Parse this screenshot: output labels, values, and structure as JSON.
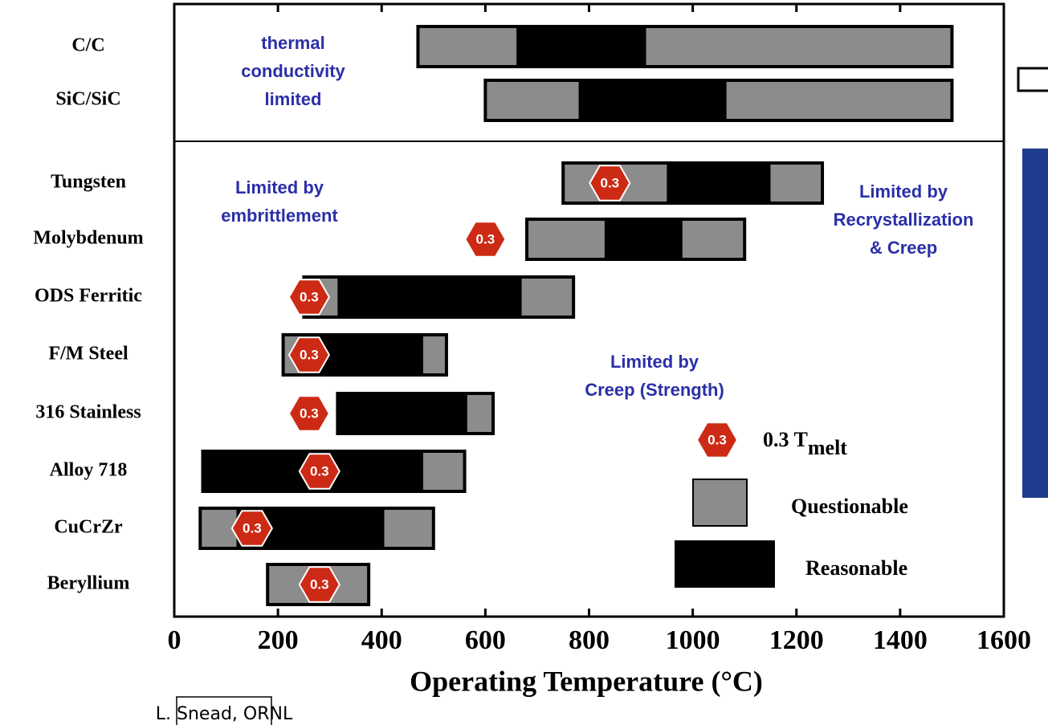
{
  "chart_data": {
    "type": "range-bar",
    "xlabel": "Operating Temperature (°C)",
    "categories": [
      "C/C",
      "SiC/SiC",
      "Tungsten",
      "Molybdenum",
      "ODS Ferritic",
      "F/M Steel",
      "316 Stainless",
      "Alloy 718",
      "CuCrZr",
      "Beryllium"
    ],
    "series": [
      {
        "name": "Questionable",
        "color": "#8c8c8c",
        "values": [
          [
            470,
            1500
          ],
          [
            600,
            1500
          ],
          [
            750,
            1250
          ],
          [
            680,
            1100
          ],
          [
            250,
            770
          ],
          [
            210,
            525
          ],
          [
            315,
            615
          ],
          [
            55,
            560
          ],
          [
            50,
            500
          ],
          [
            180,
            375
          ]
        ]
      },
      {
        "name": "Reasonable",
        "color": "#000000",
        "values": [
          [
            660,
            910
          ],
          [
            780,
            1065
          ],
          [
            950,
            1150
          ],
          [
            830,
            980
          ],
          [
            315,
            670
          ],
          [
            240,
            480
          ],
          [
            315,
            565
          ],
          [
            55,
            480
          ],
          [
            120,
            405
          ],
          null
        ]
      }
    ],
    "marker": {
      "name": "0.3 T",
      "name_subscript": "melt",
      "label": "0.3",
      "color": "#cc2a14",
      "values": [
        null,
        null,
        840,
        600,
        260,
        260,
        260,
        280,
        150,
        280
      ]
    },
    "xlim": [
      0,
      1600
    ],
    "xticks": [
      0,
      200,
      400,
      600,
      800,
      1000,
      1200,
      1400,
      1600
    ],
    "annotations": [
      {
        "lines": [
          "thermal",
          "conductivity",
          "limited"
        ]
      },
      {
        "lines": [
          "Limited by",
          "embrittlement"
        ]
      },
      {
        "lines": [
          "Limited by",
          "Recrystallization",
          "& Creep"
        ]
      },
      {
        "lines": [
          "Limited by",
          "Creep (Strength)"
        ]
      }
    ],
    "credit": "L. Snead, ORNL"
  }
}
